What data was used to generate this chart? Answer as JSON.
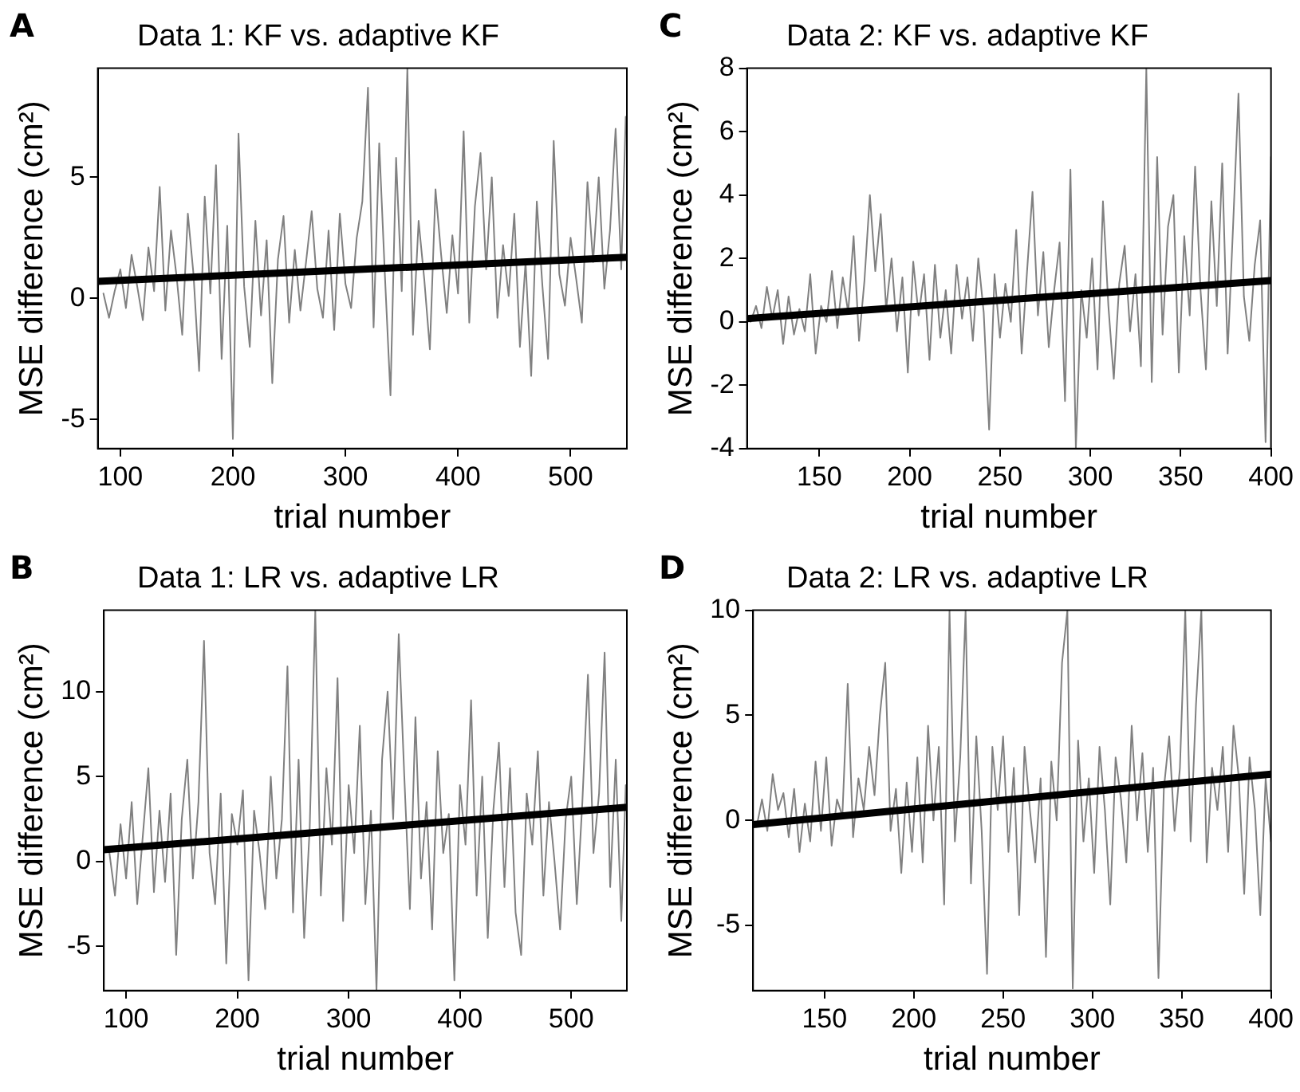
{
  "chart_data": [
    {
      "type": "line",
      "title": "Data 1: KF vs. adaptive KF",
      "xlabel": "trial number",
      "ylabel": "MSE difference (cm²)",
      "annotations": [
        "A"
      ],
      "xlim": [
        80,
        550
      ],
      "ylim": [
        -6.2,
        9.5
      ],
      "xticks": [
        100,
        200,
        300,
        400,
        500
      ],
      "yticks": [
        -5,
        0,
        5
      ],
      "grid": false,
      "legend": false,
      "marker": "none",
      "series": [
        {
          "color": "#808080",
          "x": [
            85,
            90,
            95,
            100,
            105,
            110,
            115,
            120,
            125,
            130,
            135,
            140,
            145,
            150,
            155,
            160,
            165,
            170,
            175,
            180,
            185,
            190,
            195,
            200,
            205,
            210,
            215,
            220,
            225,
            230,
            235,
            240,
            245,
            250,
            255,
            260,
            265,
            270,
            275,
            280,
            285,
            290,
            295,
            300,
            305,
            310,
            315,
            320,
            325,
            330,
            335,
            340,
            345,
            350,
            355,
            360,
            365,
            370,
            375,
            380,
            385,
            390,
            395,
            400,
            405,
            410,
            415,
            420,
            425,
            430,
            435,
            440,
            445,
            450,
            455,
            460,
            465,
            470,
            475,
            480,
            485,
            490,
            495,
            500,
            505,
            510,
            515,
            520,
            525,
            530,
            535,
            540,
            545,
            549
          ],
          "values": [
            0.2,
            -0.8,
            0.3,
            1.2,
            -0.4,
            1.8,
            0.5,
            -0.9,
            2.1,
            0.3,
            4.6,
            -0.5,
            2.8,
            0.9,
            -1.5,
            3.5,
            1.0,
            -3.0,
            4.2,
            0.2,
            5.5,
            -2.5,
            3.0,
            -5.8,
            6.8,
            0.5,
            -2.0,
            3.2,
            -0.7,
            2.4,
            -3.5,
            1.6,
            3.4,
            -1.0,
            2.0,
            -0.5,
            1.5,
            3.6,
            0.4,
            -0.8,
            2.8,
            -1.3,
            3.5,
            0.6,
            -0.4,
            2.5,
            4.0,
            8.7,
            -1.2,
            6.4,
            1.0,
            -4.0,
            5.8,
            0.3,
            9.5,
            -1.5,
            3.2,
            0.8,
            -2.1,
            4.5,
            1.8,
            -0.6,
            2.6,
            0.2,
            6.9,
            -1.0,
            3.8,
            6.0,
            1.2,
            5.0,
            -0.8,
            2.2,
            0.1,
            3.5,
            -2.0,
            1.5,
            -3.2,
            4.0,
            0.5,
            -2.5,
            6.5,
            1.0,
            -0.3,
            2.5,
            0.8,
            -1.0,
            4.8,
            1.5,
            5.0,
            0.4,
            2.8,
            7.0,
            1.2,
            7.5
          ]
        },
        {
          "type": "line",
          "color": "#000000",
          "x": [
            80,
            550
          ],
          "values": [
            0.7,
            1.7
          ]
        }
      ]
    },
    {
      "type": "line",
      "title": "Data 2: KF vs. adaptive KF",
      "xlabel": "trial number",
      "ylabel": "MSE difference (cm²)",
      "annotations": [
        "C"
      ],
      "xlim": [
        110,
        400
      ],
      "ylim": [
        -4,
        8
      ],
      "xticks": [
        150,
        200,
        250,
        300,
        350,
        400
      ],
      "yticks": [
        -4,
        -2,
        0,
        2,
        4,
        6,
        8
      ],
      "grid": false,
      "legend": false,
      "marker": "none",
      "series": [
        {
          "color": "#808080",
          "x": [
            112,
            115,
            118,
            121,
            124,
            127,
            130,
            133,
            136,
            139,
            142,
            145,
            148,
            151,
            154,
            157,
            160,
            163,
            166,
            169,
            172,
            175,
            178,
            181,
            184,
            187,
            190,
            193,
            196,
            199,
            202,
            205,
            208,
            211,
            214,
            217,
            220,
            223,
            226,
            229,
            232,
            235,
            238,
            241,
            244,
            247,
            250,
            253,
            256,
            259,
            262,
            265,
            268,
            271,
            274,
            277,
            280,
            283,
            286,
            289,
            292,
            295,
            298,
            301,
            304,
            307,
            310,
            313,
            316,
            319,
            322,
            325,
            328,
            331,
            334,
            337,
            340,
            343,
            346,
            349,
            352,
            355,
            358,
            361,
            364,
            367,
            370,
            373,
            376,
            379,
            382,
            385,
            388,
            391,
            394,
            397,
            400
          ],
          "values": [
            0.0,
            0.5,
            -0.2,
            1.1,
            0.1,
            1.0,
            -0.7,
            0.8,
            -0.4,
            0.4,
            -0.3,
            1.5,
            -1.0,
            0.5,
            0.0,
            1.6,
            -0.2,
            1.4,
            0.3,
            2.7,
            -0.6,
            1.3,
            4.0,
            1.6,
            3.4,
            0.4,
            2.0,
            -0.3,
            1.4,
            -1.6,
            1.9,
            0.2,
            1.5,
            -1.2,
            1.8,
            -0.5,
            1.0,
            -1.0,
            1.8,
            0.1,
            1.4,
            -0.6,
            2.0,
            0.3,
            -3.4,
            1.5,
            -0.5,
            1.2,
            0.0,
            2.9,
            -1.0,
            1.6,
            4.1,
            0.2,
            2.2,
            -0.8,
            1.0,
            2.5,
            -2.5,
            4.8,
            -4.0,
            1.0,
            -0.5,
            2.0,
            -1.5,
            3.8,
            0.5,
            -1.8,
            1.2,
            2.4,
            -0.3,
            1.5,
            -1.4,
            8.0,
            -1.9,
            5.2,
            -0.4,
            3.0,
            4.0,
            -1.6,
            2.7,
            0.2,
            4.9,
            1.0,
            -1.5,
            3.8,
            0.5,
            5.0,
            -1.0,
            3.0,
            7.2,
            0.8,
            -0.6,
            1.8,
            3.2,
            -3.8,
            5.2
          ]
        },
        {
          "type": "line",
          "color": "#000000",
          "x": [
            110,
            400
          ],
          "values": [
            0.1,
            1.3
          ]
        }
      ]
    },
    {
      "type": "line",
      "title": "Data 1: LR vs. adaptive LR",
      "xlabel": "trial number",
      "ylabel": "MSE difference (cm²)",
      "annotations": [
        "B"
      ],
      "xlim": [
        80,
        550
      ],
      "ylim": [
        -7.6,
        14.8
      ],
      "xticks": [
        100,
        200,
        300,
        400,
        500
      ],
      "yticks": [
        -5,
        0,
        5,
        10
      ],
      "grid": false,
      "legend": false,
      "marker": "none",
      "series": [
        {
          "color": "#808080",
          "x": [
            85,
            90,
            95,
            100,
            105,
            110,
            115,
            120,
            125,
            130,
            135,
            140,
            145,
            150,
            155,
            160,
            165,
            170,
            175,
            180,
            185,
            190,
            195,
            200,
            205,
            210,
            215,
            220,
            225,
            230,
            235,
            240,
            245,
            250,
            255,
            260,
            265,
            270,
            275,
            280,
            285,
            290,
            295,
            300,
            305,
            310,
            315,
            320,
            325,
            330,
            335,
            340,
            345,
            350,
            355,
            360,
            365,
            370,
            375,
            380,
            385,
            390,
            395,
            400,
            405,
            410,
            415,
            420,
            425,
            430,
            435,
            440,
            445,
            450,
            455,
            460,
            465,
            470,
            475,
            480,
            485,
            490,
            495,
            500,
            505,
            510,
            515,
            520,
            525,
            530,
            535,
            540,
            545,
            549
          ],
          "values": [
            0.5,
            -2.0,
            2.2,
            -1.0,
            3.5,
            -2.5,
            1.5,
            5.5,
            -1.8,
            3.0,
            -1.2,
            4.0,
            -5.5,
            2.5,
            6.0,
            -1.0,
            3.5,
            13.0,
            0.5,
            -2.5,
            4.0,
            -6.0,
            2.8,
            1.0,
            4.2,
            -7.0,
            3.0,
            0.5,
            -2.8,
            5.0,
            -1.0,
            2.5,
            11.5,
            -3.0,
            6.0,
            -4.5,
            2.0,
            14.8,
            -2.0,
            5.5,
            1.0,
            10.8,
            -3.5,
            4.5,
            0.5,
            8.0,
            -2.5,
            3.0,
            -7.6,
            6.0,
            10.0,
            2.5,
            13.4,
            5.0,
            -2.8,
            8.5,
            -1.0,
            3.5,
            -4.0,
            6.5,
            0.5,
            2.8,
            -7.0,
            4.5,
            1.0,
            9.5,
            -2.0,
            5.0,
            -4.5,
            3.0,
            7.0,
            -1.5,
            5.5,
            -3.0,
            -5.5,
            4.0,
            1.0,
            6.5,
            -2.0,
            3.5,
            0.0,
            -4.0,
            2.5,
            5.0,
            -2.5,
            3.5,
            11.0,
            0.5,
            4.0,
            12.3,
            -1.5,
            6.0,
            -3.5,
            4.5
          ]
        },
        {
          "type": "line",
          "color": "#000000",
          "x": [
            80,
            550
          ],
          "values": [
            0.7,
            3.2
          ]
        }
      ]
    },
    {
      "type": "line",
      "title": "Data 2: LR vs. adaptive LR",
      "xlabel": "trial number",
      "ylabel": "MSE difference (cm²)",
      "annotations": [
        "D"
      ],
      "xlim": [
        110,
        400
      ],
      "ylim": [
        -8.1,
        10
      ],
      "xticks": [
        150,
        200,
        250,
        300,
        350,
        400
      ],
      "yticks": [
        -5,
        0,
        5,
        10
      ],
      "grid": false,
      "legend": false,
      "marker": "none",
      "series": [
        {
          "color": "#808080",
          "x": [
            112,
            115,
            118,
            121,
            124,
            127,
            130,
            133,
            136,
            139,
            142,
            145,
            148,
            151,
            154,
            157,
            160,
            163,
            166,
            169,
            172,
            175,
            178,
            181,
            184,
            187,
            190,
            193,
            196,
            199,
            202,
            205,
            208,
            211,
            214,
            217,
            220,
            223,
            226,
            229,
            232,
            235,
            238,
            241,
            244,
            247,
            250,
            253,
            256,
            259,
            262,
            265,
            268,
            271,
            274,
            277,
            280,
            283,
            286,
            289,
            292,
            295,
            298,
            301,
            304,
            307,
            310,
            313,
            316,
            319,
            322,
            325,
            328,
            331,
            334,
            337,
            340,
            343,
            346,
            349,
            352,
            355,
            358,
            361,
            364,
            367,
            370,
            373,
            376,
            379,
            382,
            385,
            388,
            391,
            394,
            397,
            400
          ],
          "values": [
            -0.3,
            1.0,
            -0.5,
            2.2,
            0.5,
            1.3,
            -0.8,
            1.5,
            -1.5,
            0.8,
            -1.0,
            2.8,
            -0.5,
            3.0,
            -1.2,
            1.0,
            0.2,
            6.5,
            -0.8,
            2.0,
            0.5,
            3.5,
            1.2,
            5.0,
            7.5,
            -0.5,
            1.5,
            -2.5,
            1.8,
            -1.5,
            3.0,
            -2.0,
            4.5,
            0.0,
            3.5,
            -4.0,
            10.0,
            -1.0,
            3.0,
            10.0,
            -3.0,
            4.0,
            -0.5,
            -7.3,
            3.5,
            0.5,
            4.0,
            -1.5,
            2.5,
            -4.5,
            3.5,
            0.5,
            -2.0,
            2.0,
            -6.5,
            2.8,
            0.0,
            7.5,
            10.0,
            -8.0,
            3.8,
            -1.0,
            2.0,
            -2.5,
            3.5,
            0.5,
            -4.0,
            3.0,
            1.0,
            -2.0,
            4.5,
            0.0,
            3.2,
            -1.5,
            2.5,
            -7.5,
            1.5,
            4.0,
            -0.5,
            2.5,
            10.0,
            -1.0,
            5.5,
            10.0,
            -2.0,
            2.5,
            0.5,
            3.5,
            -1.5,
            4.5,
            2.0,
            -3.5,
            3.0,
            0.5,
            -4.5,
            2.0,
            -1.0
          ]
        },
        {
          "type": "line",
          "color": "#000000",
          "x": [
            110,
            400
          ],
          "values": [
            -0.2,
            2.2
          ]
        }
      ]
    }
  ]
}
